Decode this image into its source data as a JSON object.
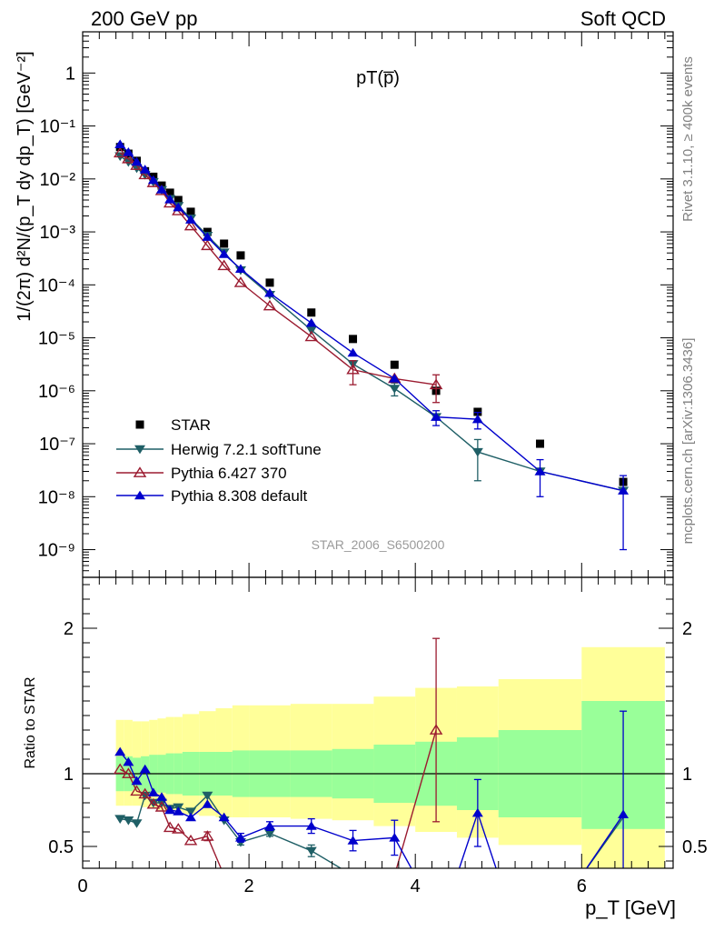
{
  "header": {
    "left": "200 GeV pp",
    "right": "Soft QCD",
    "side_top": "Rivet 3.1.10, ≥ 400k events",
    "side_bottom": "mcplots.cern.ch [arXiv:1306.3436]"
  },
  "chart_data": [
    {
      "type": "scatter",
      "title": "pT(p̅)",
      "xlabel": "p_T [GeV]",
      "ylabel": "1/(2π) d²N/(p_T dy dp_T) [GeV⁻²]",
      "watermark": "STAR_2006_S6500200",
      "xlim": [
        0,
        7.1
      ],
      "ylim": [
        3e-10,
        6
      ],
      "yscale": "log",
      "ytick_labels": [
        "10⁻⁹",
        "10⁻⁸",
        "10⁻⁷",
        "10⁻⁶",
        "10⁻⁵",
        "10⁻⁴",
        "10⁻³",
        "10⁻²",
        "10⁻¹",
        "1"
      ],
      "legend_position": "lower-left",
      "series": [
        {
          "name": "STAR",
          "color": "#000000",
          "marker": "square",
          "x": [
            0.45,
            0.55,
            0.65,
            0.75,
            0.85,
            0.95,
            1.05,
            1.15,
            1.3,
            1.5,
            1.7,
            1.9,
            2.25,
            2.75,
            3.25,
            3.75,
            4.25,
            4.75,
            5.5,
            6.5
          ],
          "y": [
            0.04,
            0.03,
            0.022,
            0.014,
            0.011,
            0.0075,
            0.0055,
            0.004,
            0.0024,
            0.001,
            0.0006,
            0.00036,
            0.00011,
            3e-05,
            9.5e-06,
            3.1e-06,
            1e-06,
            4e-07,
            1e-07,
            1.9e-08
          ]
        },
        {
          "name": "Herwig 7.2.1 softTune",
          "color": "#1f5f66",
          "marker": "triangle-down",
          "x": [
            0.45,
            0.55,
            0.65,
            0.75,
            0.85,
            0.95,
            1.05,
            1.15,
            1.3,
            1.5,
            1.7,
            1.9,
            2.25,
            2.75,
            3.25,
            3.75,
            4.25,
            4.75,
            5.5,
            6.5
          ],
          "y": [
            0.027,
            0.021,
            0.016,
            0.012,
            0.0088,
            0.0062,
            0.0042,
            0.0031,
            0.0018,
            0.00085,
            0.00041,
            0.00019,
            6.5e-05,
            1.4e-05,
            3.2e-06,
            1.1e-06,
            3.2e-07,
            7e-08,
            3e-08,
            1.3e-08
          ],
          "yerr": [
            0,
            0,
            0,
            0,
            0,
            0,
            0,
            0,
            0,
            0,
            0,
            0,
            0,
            0,
            0,
            3e-07,
            0,
            5e-08,
            0,
            0
          ]
        },
        {
          "name": "Pythia 6.427 370",
          "color": "#9b1b30",
          "marker": "triangle-up-open",
          "x": [
            0.45,
            0.55,
            0.65,
            0.75,
            0.85,
            0.95,
            1.05,
            1.15,
            1.3,
            1.5,
            1.7,
            1.9,
            2.25,
            2.75,
            3.25,
            3.75,
            4.25
          ],
          "y": [
            0.031,
            0.024,
            0.018,
            0.012,
            0.0085,
            0.006,
            0.0035,
            0.0025,
            0.0013,
            0.00055,
            0.00023,
            0.00011,
            4e-05,
            1.05e-05,
            2.5e-06,
            1.7e-06,
            1.3e-06
          ],
          "yerr": [
            0,
            0,
            0,
            0,
            0,
            0,
            0,
            0,
            0,
            0,
            0,
            0,
            0,
            0,
            1.2e-06,
            0,
            7e-07
          ]
        },
        {
          "name": "Pythia 8.308 default",
          "color": "#0000cc",
          "marker": "triangle-up",
          "x": [
            0.45,
            0.55,
            0.65,
            0.75,
            0.85,
            0.95,
            1.05,
            1.15,
            1.3,
            1.5,
            1.7,
            1.9,
            2.25,
            2.75,
            3.25,
            3.75,
            4.25,
            4.75,
            5.5,
            6.5
          ],
          "y": [
            0.045,
            0.032,
            0.021,
            0.015,
            0.0095,
            0.0063,
            0.0041,
            0.0029,
            0.0017,
            0.0008,
            0.00038,
            0.0002,
            7e-05,
            1.9e-05,
            5.2e-06,
            1.7e-06,
            3.2e-07,
            2.9e-07,
            3e-08,
            1.3e-08
          ],
          "yerr": [
            0,
            0,
            0,
            0,
            0,
            0,
            0,
            0,
            0,
            0,
            0,
            0,
            0,
            0,
            0,
            0,
            1e-07,
            1e-07,
            2e-08,
            1.2e-08
          ]
        }
      ]
    },
    {
      "type": "scatter",
      "title": "",
      "xlabel": "p_T [GeV]",
      "ylabel": "Ratio to STAR",
      "xlim": [
        0,
        7.1
      ],
      "ylim": [
        0.35,
        2.35
      ],
      "xticks": [
        0,
        2,
        4,
        6
      ],
      "yticks": [
        0.5,
        1,
        2
      ],
      "reference_line": 1,
      "bands": {
        "edges": [
          0.4,
          0.5,
          0.6,
          0.7,
          0.8,
          0.9,
          1.0,
          1.1,
          1.2,
          1.4,
          1.6,
          1.8,
          2.0,
          2.5,
          3.0,
          3.5,
          4.0,
          4.5,
          5.0,
          6.0,
          7.0
        ],
        "stat_lo": [
          0.88,
          0.88,
          0.89,
          0.88,
          0.87,
          0.87,
          0.86,
          0.86,
          0.85,
          0.85,
          0.85,
          0.84,
          0.84,
          0.84,
          0.83,
          0.8,
          0.78,
          0.75,
          0.7,
          0.62
        ],
        "stat_hi": [
          1.12,
          1.12,
          1.11,
          1.12,
          1.13,
          1.13,
          1.14,
          1.14,
          1.15,
          1.15,
          1.15,
          1.16,
          1.16,
          1.16,
          1.17,
          1.2,
          1.22,
          1.25,
          1.3,
          1.5
        ],
        "total_lo": [
          0.78,
          0.78,
          0.78,
          0.77,
          0.76,
          0.75,
          0.74,
          0.74,
          0.72,
          0.71,
          0.7,
          0.7,
          0.7,
          0.69,
          0.68,
          0.64,
          0.6,
          0.56,
          0.51,
          0.35
        ],
        "total_hi": [
          1.37,
          1.37,
          1.36,
          1.36,
          1.37,
          1.38,
          1.39,
          1.39,
          1.41,
          1.43,
          1.45,
          1.47,
          1.47,
          1.48,
          1.48,
          1.53,
          1.59,
          1.6,
          1.65,
          1.87
        ],
        "stat_color": "#99ff99",
        "total_color": "#ffff99"
      },
      "series": [
        {
          "name": "Herwig 7.2.1 softTune",
          "color": "#1f5f66",
          "marker": "triangle-down",
          "x": [
            0.45,
            0.55,
            0.65,
            0.75,
            0.85,
            0.95,
            1.05,
            1.15,
            1.3,
            1.5,
            1.7,
            1.9,
            2.25,
            2.75,
            3.25
          ],
          "y": [
            0.69,
            0.68,
            0.66,
            0.85,
            0.8,
            0.8,
            0.76,
            0.77,
            0.74,
            0.85,
            0.68,
            0.53,
            0.59,
            0.47,
            0.3
          ],
          "yerr": [
            0,
            0,
            0,
            0,
            0,
            0,
            0,
            0,
            0,
            0,
            0,
            0.02,
            0.02,
            0.04,
            0
          ],
          "segments": [
            [
              6.0,
              0.3,
              6.5,
              0.7
            ]
          ]
        },
        {
          "name": "Pythia 6.427 370",
          "color": "#9b1b30",
          "marker": "triangle-up-open",
          "x": [
            0.45,
            0.55,
            0.65,
            0.75,
            0.85,
            0.95,
            1.05,
            1.15,
            1.3,
            1.5,
            1.7,
            3.75,
            4.25
          ],
          "y": [
            1.03,
            1.0,
            0.88,
            0.86,
            0.79,
            0.77,
            0.63,
            0.62,
            0.54,
            0.57,
            0.3,
            0.3,
            1.3
          ],
          "yerr": [
            0,
            0,
            0,
            0,
            0,
            0,
            0,
            0,
            0,
            0.03,
            0,
            0,
            0.63
          ]
        },
        {
          "name": "Pythia 8.308 default",
          "color": "#0000cc",
          "marker": "triangle-up",
          "x": [
            0.45,
            0.55,
            0.65,
            0.75,
            0.85,
            0.95,
            1.05,
            1.15,
            1.3,
            1.5,
            1.7,
            1.9,
            2.25,
            2.75,
            3.25,
            3.75,
            4.0,
            4.5,
            4.75,
            5.0,
            5.5,
            6.0,
            6.5
          ],
          "y": [
            1.15,
            1.08,
            0.95,
            1.03,
            0.87,
            0.84,
            0.75,
            0.74,
            0.7,
            0.79,
            0.7,
            0.56,
            0.64,
            0.64,
            0.54,
            0.56,
            0.3,
            0.3,
            0.73,
            0.3,
            0.3,
            0.3,
            0.72
          ],
          "yerr": [
            0,
            0,
            0,
            0,
            0,
            0,
            0,
            0,
            0,
            0,
            0,
            0.03,
            0.03,
            0.05,
            0.07,
            0.12,
            0,
            0,
            0.23,
            0,
            0,
            0,
            0.71
          ]
        }
      ]
    }
  ]
}
